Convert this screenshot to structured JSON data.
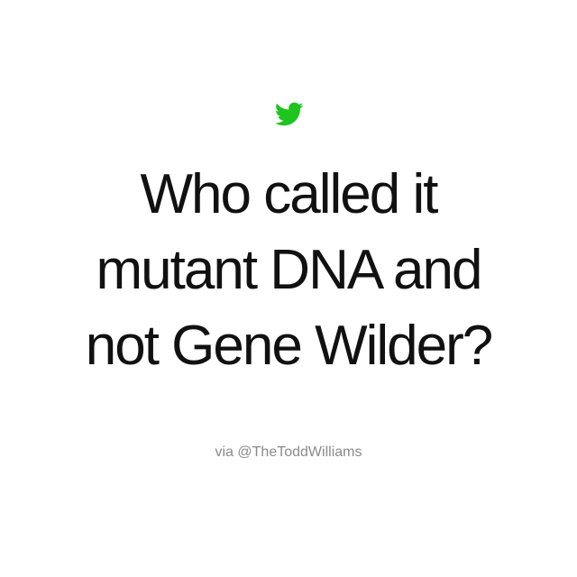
{
  "brand": {
    "icon": "twitter-bird-icon",
    "color": "#1fc41f"
  },
  "quote": {
    "lines": [
      "Who called it",
      "mutant DNA and",
      "not Gene Wilder?"
    ]
  },
  "attribution": {
    "text": "via @TheToddWilliams"
  }
}
